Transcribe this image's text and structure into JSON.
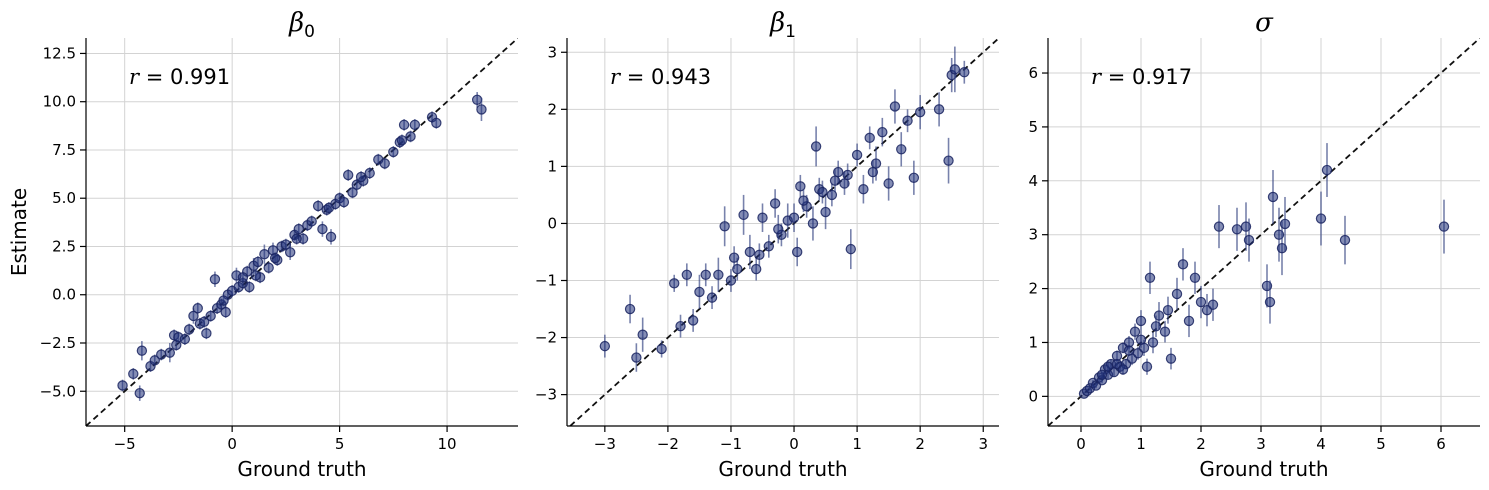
{
  "chart_data": [
    {
      "type": "scatter",
      "title_symbol": "β",
      "title_subscript": "0",
      "xlabel": "Ground truth",
      "ylabel": "Estimate",
      "annotation": {
        "r_symbol": "r",
        "r_value": "= 0.991"
      },
      "xlim": [
        -6.8,
        13.3
      ],
      "ylim": [
        -6.8,
        13.3
      ],
      "xticks": [
        -5,
        0,
        5,
        10
      ],
      "xtick_labels": [
        "−5",
        "0",
        "5",
        "10"
      ],
      "yticks": [
        -5.0,
        -2.5,
        0.0,
        2.5,
        5.0,
        7.5,
        10.0,
        12.5
      ],
      "ytick_labels": [
        "−5.0",
        "−2.5",
        "0.0",
        "2.5",
        "5.0",
        "7.5",
        "10.0",
        "12.5"
      ],
      "grid": true,
      "reference_line": "y = x (dashed)",
      "points": [
        [
          -5.1,
          -4.7,
          0.3
        ],
        [
          -4.6,
          -4.1,
          0.3
        ],
        [
          -4.3,
          -5.1,
          0.4
        ],
        [
          -4.2,
          -2.9,
          0.5
        ],
        [
          -3.8,
          -3.7,
          0.3
        ],
        [
          -3.6,
          -3.4,
          0.3
        ],
        [
          -3.3,
          -3.1,
          0.3
        ],
        [
          -2.9,
          -3.0,
          0.5
        ],
        [
          -2.7,
          -2.1,
          0.3
        ],
        [
          -2.6,
          -2.6,
          0.3
        ],
        [
          -2.5,
          -2.2,
          0.3
        ],
        [
          -2.2,
          -2.3,
          0.3
        ],
        [
          -2.0,
          -1.8,
          0.3
        ],
        [
          -1.8,
          -1.1,
          0.4
        ],
        [
          -1.6,
          -0.7,
          0.3
        ],
        [
          -1.5,
          -1.5,
          0.3
        ],
        [
          -1.3,
          -1.4,
          0.3
        ],
        [
          -1.2,
          -2.0,
          0.3
        ],
        [
          -1.0,
          -1.1,
          0.3
        ],
        [
          -0.8,
          0.8,
          0.4
        ],
        [
          -0.7,
          -0.7,
          0.3
        ],
        [
          -0.5,
          -0.5,
          0.3
        ],
        [
          -0.3,
          -0.9,
          0.3
        ],
        [
          -0.2,
          0.0,
          0.3
        ],
        [
          0.0,
          0.2,
          0.3
        ],
        [
          0.2,
          1.0,
          0.4
        ],
        [
          0.3,
          0.4,
          0.3
        ],
        [
          0.5,
          0.6,
          0.3
        ],
        [
          0.7,
          1.2,
          0.3
        ],
        [
          0.8,
          0.4,
          0.3
        ],
        [
          1.0,
          1.5,
          0.4
        ],
        [
          1.2,
          1.7,
          0.3
        ],
        [
          1.3,
          0.9,
          0.3
        ],
        [
          1.5,
          2.1,
          0.5
        ],
        [
          1.7,
          1.4,
          0.3
        ],
        [
          1.9,
          2.3,
          0.4
        ],
        [
          2.1,
          1.8,
          0.3
        ],
        [
          2.3,
          2.5,
          0.3
        ],
        [
          2.5,
          2.6,
          0.3
        ],
        [
          2.7,
          2.2,
          0.4
        ],
        [
          2.9,
          3.1,
          0.3
        ],
        [
          3.1,
          3.4,
          0.3
        ],
        [
          3.3,
          2.9,
          0.3
        ],
        [
          3.5,
          3.6,
          0.3
        ],
        [
          3.7,
          3.8,
          0.3
        ],
        [
          4.0,
          4.6,
          0.3
        ],
        [
          4.2,
          3.4,
          0.4
        ],
        [
          4.4,
          4.4,
          0.3
        ],
        [
          4.6,
          3.0,
          0.4
        ],
        [
          4.8,
          4.7,
          0.3
        ],
        [
          5.0,
          5.0,
          0.3
        ],
        [
          5.2,
          4.8,
          0.3
        ],
        [
          5.4,
          6.2,
          0.3
        ],
        [
          5.6,
          5.3,
          0.3
        ],
        [
          5.8,
          5.7,
          0.3
        ],
        [
          6.1,
          5.9,
          0.3
        ],
        [
          6.4,
          6.3,
          0.3
        ],
        [
          6.8,
          7.0,
          0.3
        ],
        [
          7.1,
          6.8,
          0.3
        ],
        [
          7.5,
          7.4,
          0.3
        ],
        [
          7.8,
          7.9,
          0.3
        ],
        [
          8.0,
          8.8,
          0.3
        ],
        [
          8.3,
          8.2,
          0.3
        ],
        [
          8.5,
          8.8,
          0.3
        ],
        [
          9.3,
          9.2,
          0.3
        ],
        [
          9.5,
          8.9,
          0.3
        ],
        [
          11.4,
          10.1,
          0.4
        ],
        [
          11.6,
          9.6,
          0.6
        ],
        [
          0.5,
          0.9,
          0.3
        ],
        [
          1.1,
          1.0,
          0.3
        ],
        [
          2.0,
          1.9,
          0.3
        ],
        [
          3.0,
          2.9,
          0.3
        ],
        [
          4.5,
          4.5,
          0.3
        ],
        [
          -0.4,
          -0.3,
          0.3
        ],
        [
          6.0,
          6.1,
          0.3
        ],
        [
          7.9,
          8.0,
          0.3
        ]
      ]
    },
    {
      "type": "scatter",
      "title_symbol": "β",
      "title_subscript": "1",
      "xlabel": "Ground truth",
      "ylabel": "",
      "annotation": {
        "r_symbol": "r",
        "r_value": "= 0.943"
      },
      "xlim": [
        -3.6,
        3.25
      ],
      "ylim": [
        -3.55,
        3.25
      ],
      "xticks": [
        -3,
        -2,
        -1,
        0,
        1,
        2,
        3
      ],
      "xtick_labels": [
        "−3",
        "−2",
        "−1",
        "0",
        "1",
        "2",
        "3"
      ],
      "yticks": [
        -3,
        -2,
        -1,
        0,
        1,
        2,
        3
      ],
      "ytick_labels": [
        "−3",
        "−2",
        "−1",
        "0",
        "1",
        "2",
        "3"
      ],
      "grid": true,
      "reference_line": "y = x (dashed)",
      "points": [
        [
          -3.0,
          -2.15,
          0.2
        ],
        [
          -2.6,
          -1.5,
          0.25
        ],
        [
          -2.5,
          -2.35,
          0.25
        ],
        [
          -2.4,
          -1.95,
          0.3
        ],
        [
          -2.1,
          -2.2,
          0.15
        ],
        [
          -1.9,
          -1.05,
          0.15
        ],
        [
          -1.8,
          -1.8,
          0.2
        ],
        [
          -1.7,
          -0.9,
          0.2
        ],
        [
          -1.6,
          -1.7,
          0.2
        ],
        [
          -1.5,
          -1.2,
          0.3
        ],
        [
          -1.4,
          -0.9,
          0.2
        ],
        [
          -1.3,
          -1.3,
          0.2
        ],
        [
          -1.2,
          -0.9,
          0.3
        ],
        [
          -1.1,
          -0.05,
          0.35
        ],
        [
          -1.0,
          -1.0,
          0.2
        ],
        [
          -0.9,
          -0.8,
          0.2
        ],
        [
          -0.8,
          0.15,
          0.35
        ],
        [
          -0.7,
          -0.5,
          0.3
        ],
        [
          -0.6,
          -0.8,
          0.2
        ],
        [
          -0.5,
          0.1,
          0.25
        ],
        [
          -0.4,
          -0.4,
          0.2
        ],
        [
          -0.3,
          0.35,
          0.25
        ],
        [
          -0.2,
          -0.2,
          0.2
        ],
        [
          -0.1,
          0.05,
          0.3
        ],
        [
          0.0,
          0.1,
          0.25
        ],
        [
          0.05,
          -0.5,
          0.25
        ],
        [
          0.1,
          0.65,
          0.2
        ],
        [
          0.2,
          0.3,
          0.2
        ],
        [
          0.3,
          0.0,
          0.3
        ],
        [
          0.35,
          1.35,
          0.35
        ],
        [
          0.4,
          0.6,
          0.2
        ],
        [
          0.5,
          0.2,
          0.3
        ],
        [
          0.6,
          0.5,
          0.2
        ],
        [
          0.7,
          0.9,
          0.2
        ],
        [
          0.8,
          0.7,
          0.2
        ],
        [
          0.9,
          -0.45,
          0.35
        ],
        [
          1.0,
          1.2,
          0.2
        ],
        [
          1.1,
          0.6,
          0.25
        ],
        [
          1.2,
          1.5,
          0.2
        ],
        [
          1.3,
          1.05,
          0.3
        ],
        [
          1.4,
          1.6,
          0.25
        ],
        [
          1.5,
          0.7,
          0.3
        ],
        [
          1.6,
          2.05,
          0.3
        ],
        [
          1.7,
          1.3,
          0.3
        ],
        [
          1.8,
          1.8,
          0.2
        ],
        [
          1.9,
          0.8,
          0.3
        ],
        [
          2.0,
          1.95,
          0.3
        ],
        [
          2.3,
          2.0,
          0.3
        ],
        [
          2.45,
          1.1,
          0.4
        ],
        [
          2.5,
          2.6,
          0.3
        ],
        [
          2.55,
          2.7,
          0.4
        ],
        [
          2.7,
          2.65,
          0.2
        ],
        [
          -0.95,
          -0.6,
          0.2
        ],
        [
          0.15,
          0.4,
          0.2
        ],
        [
          0.65,
          0.75,
          0.2
        ],
        [
          -0.25,
          -0.1,
          0.25
        ],
        [
          1.25,
          0.9,
          0.2
        ],
        [
          0.45,
          0.55,
          0.2
        ],
        [
          -0.55,
          -0.55,
          0.2
        ],
        [
          0.85,
          0.85,
          0.2
        ]
      ]
    },
    {
      "type": "scatter",
      "title_symbol": "σ",
      "title_subscript": "",
      "xlabel": "Ground truth",
      "ylabel": "",
      "annotation": {
        "r_symbol": "r",
        "r_value": "= 0.917"
      },
      "xlim": [
        -0.55,
        6.65
      ],
      "ylim": [
        -0.55,
        6.65
      ],
      "xticks": [
        0,
        1,
        2,
        3,
        4,
        5,
        6
      ],
      "xtick_labels": [
        "0",
        "1",
        "2",
        "3",
        "4",
        "5",
        "6"
      ],
      "yticks": [
        0,
        1,
        2,
        3,
        4,
        5,
        6
      ],
      "ytick_labels": [
        "0",
        "1",
        "2",
        "3",
        "4",
        "5",
        "6"
      ],
      "grid": true,
      "reference_line": "y = x (dashed)",
      "points": [
        [
          0.05,
          0.05,
          0.03
        ],
        [
          0.1,
          0.1,
          0.03
        ],
        [
          0.15,
          0.15,
          0.04
        ],
        [
          0.2,
          0.25,
          0.05
        ],
        [
          0.25,
          0.2,
          0.05
        ],
        [
          0.3,
          0.35,
          0.06
        ],
        [
          0.35,
          0.3,
          0.06
        ],
        [
          0.4,
          0.5,
          0.07
        ],
        [
          0.45,
          0.4,
          0.07
        ],
        [
          0.5,
          0.6,
          0.08
        ],
        [
          0.55,
          0.45,
          0.08
        ],
        [
          0.6,
          0.75,
          0.1
        ],
        [
          0.65,
          0.55,
          0.1
        ],
        [
          0.7,
          0.9,
          0.1
        ],
        [
          0.75,
          0.6,
          0.1
        ],
        [
          0.8,
          1.0,
          0.12
        ],
        [
          0.85,
          0.7,
          0.12
        ],
        [
          0.9,
          1.2,
          0.15
        ],
        [
          0.95,
          0.8,
          0.12
        ],
        [
          1.0,
          1.4,
          0.2
        ],
        [
          1.05,
          0.9,
          0.15
        ],
        [
          1.1,
          0.55,
          0.15
        ],
        [
          1.15,
          2.2,
          0.3
        ],
        [
          1.2,
          1.0,
          0.2
        ],
        [
          1.3,
          1.5,
          0.25
        ],
        [
          1.4,
          1.2,
          0.2
        ],
        [
          1.5,
          0.7,
          0.2
        ],
        [
          1.6,
          1.9,
          0.3
        ],
        [
          1.7,
          2.45,
          0.3
        ],
        [
          1.8,
          1.4,
          0.3
        ],
        [
          1.9,
          2.2,
          0.3
        ],
        [
          2.0,
          1.75,
          0.3
        ],
        [
          2.1,
          1.6,
          0.3
        ],
        [
          2.2,
          1.7,
          0.3
        ],
        [
          2.3,
          3.15,
          0.4
        ],
        [
          2.6,
          3.1,
          0.4
        ],
        [
          2.75,
          3.15,
          0.45
        ],
        [
          2.8,
          2.9,
          0.4
        ],
        [
          3.1,
          2.05,
          0.4
        ],
        [
          3.15,
          1.75,
          0.4
        ],
        [
          3.2,
          3.7,
          0.5
        ],
        [
          3.3,
          3.0,
          0.5
        ],
        [
          3.35,
          2.75,
          0.5
        ],
        [
          3.4,
          3.2,
          0.5
        ],
        [
          4.0,
          3.3,
          0.5
        ],
        [
          4.1,
          4.2,
          0.5
        ],
        [
          4.4,
          2.9,
          0.45
        ],
        [
          6.05,
          3.15,
          0.5
        ],
        [
          0.6,
          0.6,
          0.08
        ],
        [
          0.8,
          0.85,
          0.1
        ],
        [
          1.0,
          1.05,
          0.15
        ],
        [
          1.25,
          1.3,
          0.2
        ],
        [
          0.35,
          0.4,
          0.05
        ],
        [
          0.45,
          0.55,
          0.07
        ],
        [
          0.7,
          0.5,
          0.1
        ],
        [
          1.45,
          1.6,
          0.25
        ]
      ]
    }
  ]
}
